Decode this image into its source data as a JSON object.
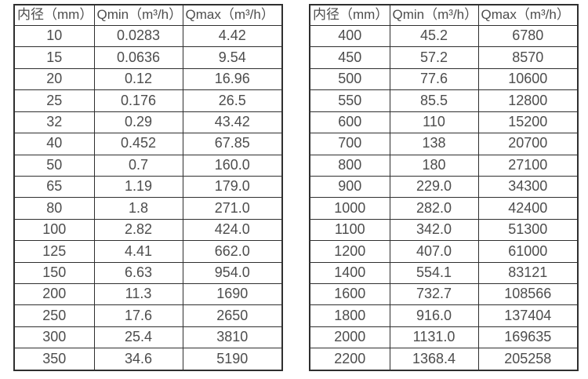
{
  "page": {
    "background_color": "#ffffff",
    "border_color": "#2f2f2f",
    "text_color": "#4d4d4d"
  },
  "tables": [
    {
      "name": "flow-rate-table-small-diameters",
      "columns": [
        "内径（mm）",
        "Qmin（m³/h）",
        "Qmax（m³/h）"
      ],
      "rows": [
        [
          "10",
          "0.0283",
          "4.42"
        ],
        [
          "15",
          "0.0636",
          "9.54"
        ],
        [
          "20",
          "0.12",
          "16.96"
        ],
        [
          "25",
          "0.176",
          "26.5"
        ],
        [
          "32",
          "0.29",
          "43.42"
        ],
        [
          "40",
          "0.452",
          "67.85"
        ],
        [
          "50",
          "0.7",
          "160.0"
        ],
        [
          "65",
          "1.19",
          "179.0"
        ],
        [
          "80",
          "1.8",
          "271.0"
        ],
        [
          "100",
          "2.82",
          "424.0"
        ],
        [
          "125",
          "4.41",
          "662.0"
        ],
        [
          "150",
          "6.63",
          "954.0"
        ],
        [
          "200",
          "11.3",
          "1690"
        ],
        [
          "250",
          "17.6",
          "2650"
        ],
        [
          "300",
          "25.4",
          "3810"
        ],
        [
          "350",
          "34.6",
          "5190"
        ]
      ]
    },
    {
      "name": "flow-rate-table-large-diameters",
      "columns": [
        "内径（mm）",
        "Qmin（m³/h）",
        "Qmax（m³/h）"
      ],
      "rows": [
        [
          "400",
          "45.2",
          "6780"
        ],
        [
          "450",
          "57.2",
          "8570"
        ],
        [
          "500",
          "77.6",
          "10600"
        ],
        [
          "550",
          "85.5",
          "12800"
        ],
        [
          "600",
          "110",
          "15200"
        ],
        [
          "700",
          "138",
          "20700"
        ],
        [
          "800",
          "180",
          "27100"
        ],
        [
          "900",
          "229.0",
          "34300"
        ],
        [
          "1000",
          "282.0",
          "42400"
        ],
        [
          "1100",
          "342.0",
          "51300"
        ],
        [
          "1200",
          "407.0",
          "61000"
        ],
        [
          "1400",
          "554.1",
          "83121"
        ],
        [
          "1600",
          "732.7",
          "108566"
        ],
        [
          "1800",
          "916.0",
          "137404"
        ],
        [
          "2000",
          "1131.0",
          "169635"
        ],
        [
          "2200",
          "1368.4",
          "205258"
        ]
      ]
    }
  ],
  "chart_data": [
    {
      "type": "table",
      "title": "",
      "columns": [
        "内径（mm）",
        "Qmin（m³/h）",
        "Qmax（m³/h）"
      ],
      "rows": [
        [
          "10",
          "0.0283",
          "4.42"
        ],
        [
          "15",
          "0.0636",
          "9.54"
        ],
        [
          "20",
          "0.12",
          "16.96"
        ],
        [
          "25",
          "0.176",
          "26.5"
        ],
        [
          "32",
          "0.29",
          "43.42"
        ],
        [
          "40",
          "0.452",
          "67.85"
        ],
        [
          "50",
          "0.7",
          "160.0"
        ],
        [
          "65",
          "1.19",
          "179.0"
        ],
        [
          "80",
          "1.8",
          "271.0"
        ],
        [
          "100",
          "2.82",
          "424.0"
        ],
        [
          "125",
          "4.41",
          "662.0"
        ],
        [
          "150",
          "6.63",
          "954.0"
        ],
        [
          "200",
          "11.3",
          "1690"
        ],
        [
          "250",
          "17.6",
          "2650"
        ],
        [
          "300",
          "25.4",
          "3810"
        ],
        [
          "350",
          "34.6",
          "5190"
        ]
      ]
    },
    {
      "type": "table",
      "title": "",
      "columns": [
        "内径（mm）",
        "Qmin（m³/h）",
        "Qmax（m³/h）"
      ],
      "rows": [
        [
          "400",
          "45.2",
          "6780"
        ],
        [
          "450",
          "57.2",
          "8570"
        ],
        [
          "500",
          "77.6",
          "10600"
        ],
        [
          "550",
          "85.5",
          "12800"
        ],
        [
          "600",
          "110",
          "15200"
        ],
        [
          "700",
          "138",
          "20700"
        ],
        [
          "800",
          "180",
          "27100"
        ],
        [
          "900",
          "229.0",
          "34300"
        ],
        [
          "1000",
          "282.0",
          "42400"
        ],
        [
          "1100",
          "342.0",
          "51300"
        ],
        [
          "1200",
          "407.0",
          "61000"
        ],
        [
          "1400",
          "554.1",
          "83121"
        ],
        [
          "1600",
          "732.7",
          "108566"
        ],
        [
          "1800",
          "916.0",
          "137404"
        ],
        [
          "2000",
          "1131.0",
          "169635"
        ],
        [
          "2200",
          "1368.4",
          "205258"
        ]
      ]
    }
  ]
}
